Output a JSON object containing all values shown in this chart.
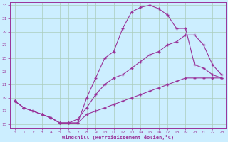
{
  "xlabel": "Windchill (Refroidissement éolien,°C)",
  "background_color": "#cceeff",
  "grid_color": "#aaccbb",
  "line_color": "#993399",
  "xlim": [
    -0.5,
    23.5
  ],
  "ylim": [
    14.5,
    33.5
  ],
  "yticks": [
    15,
    17,
    19,
    21,
    23,
    25,
    27,
    29,
    31,
    33
  ],
  "xticks": [
    0,
    1,
    2,
    3,
    4,
    5,
    6,
    7,
    8,
    9,
    10,
    11,
    12,
    13,
    14,
    15,
    16,
    17,
    18,
    19,
    20,
    21,
    22,
    23
  ],
  "series": [
    {
      "x": [
        0,
        1,
        2,
        3,
        4,
        5,
        6,
        7,
        8,
        9,
        10,
        11,
        12,
        13,
        14,
        15,
        16,
        17,
        18,
        19,
        20,
        21,
        22,
        23
      ],
      "y": [
        18.5,
        17.5,
        17.0,
        16.5,
        16.0,
        15.2,
        15.2,
        15.2,
        19.0,
        22.0,
        25.0,
        26.0,
        29.5,
        32.0,
        32.7,
        33.0,
        32.5,
        31.5,
        29.5,
        29.5,
        24.0,
        23.5,
        22.5,
        22.0
      ]
    },
    {
      "x": [
        0,
        1,
        2,
        3,
        4,
        5,
        6,
        7,
        8,
        9,
        10,
        11,
        12,
        13,
        14,
        15,
        16,
        17,
        18,
        19,
        20,
        21,
        22,
        23
      ],
      "y": [
        18.5,
        17.5,
        17.0,
        16.5,
        16.0,
        15.2,
        15.2,
        15.8,
        17.5,
        19.5,
        21.0,
        22.0,
        22.5,
        23.5,
        24.5,
        25.5,
        26.0,
        27.0,
        27.5,
        28.5,
        28.5,
        27.0,
        24.0,
        22.5
      ]
    },
    {
      "x": [
        0,
        1,
        2,
        3,
        4,
        5,
        6,
        7,
        8,
        9,
        10,
        11,
        12,
        13,
        14,
        15,
        16,
        17,
        18,
        19,
        20,
        21,
        22,
        23
      ],
      "y": [
        18.5,
        17.5,
        17.0,
        16.5,
        16.0,
        15.2,
        15.2,
        15.2,
        16.5,
        17.0,
        17.5,
        18.0,
        18.5,
        19.0,
        19.5,
        20.0,
        20.5,
        21.0,
        21.5,
        22.0,
        22.0,
        22.0,
        22.0,
        22.0
      ]
    }
  ]
}
